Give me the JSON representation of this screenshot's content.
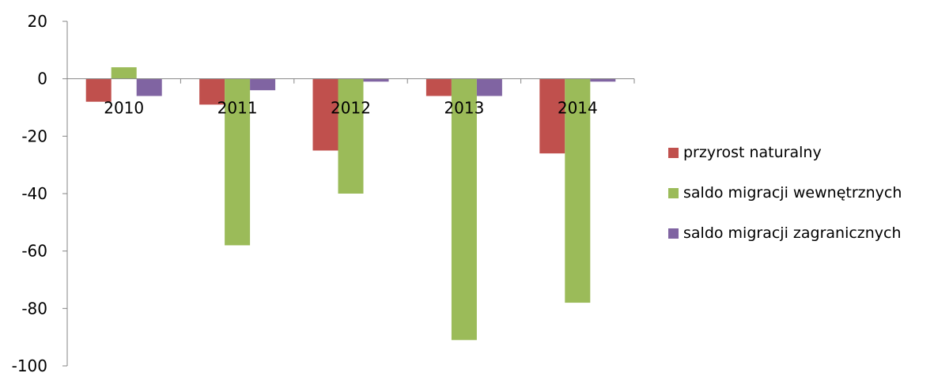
{
  "chart_data": {
    "type": "bar",
    "categories": [
      "2010",
      "2011",
      "2012",
      "2013",
      "2014"
    ],
    "series": [
      {
        "name": "przyrost naturalny",
        "color": "#c0504d",
        "values": [
          -8,
          -9,
          -25,
          -6,
          -26
        ]
      },
      {
        "name": "saldo migracji wewnętrznych",
        "color": "#9bbb59",
        "values": [
          4,
          -58,
          -40,
          -91,
          -78
        ]
      },
      {
        "name": "saldo migracji zagranicznych",
        "color": "#8064a2",
        "values": [
          -6,
          -4,
          -1,
          -6,
          -1
        ]
      }
    ],
    "yticks": [
      "20",
      "0",
      "-20",
      "-40",
      "-60",
      "-80",
      "-100"
    ],
    "ylim": [
      -100,
      20
    ],
    "legend_position": "right",
    "grid": false
  }
}
